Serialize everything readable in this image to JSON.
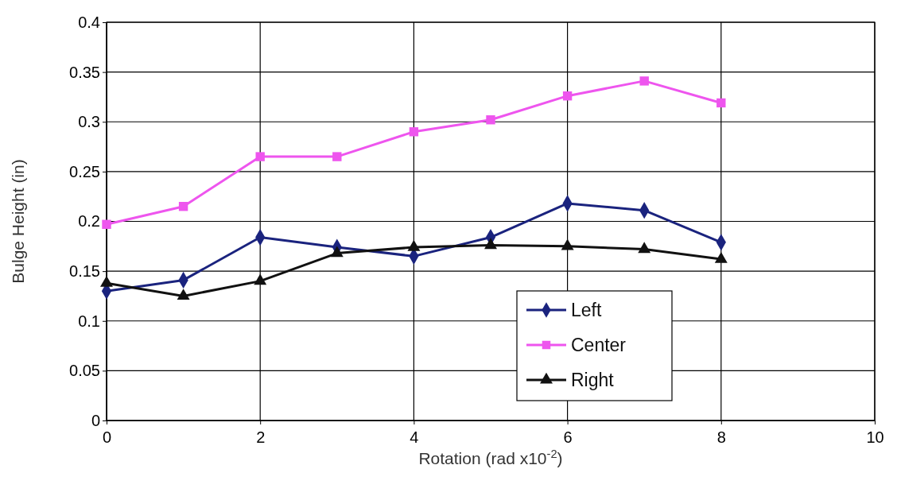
{
  "chart_data": {
    "type": "line",
    "xlabel": "Rotation (rad x10$^{-2}$)",
    "ylabel": "Bulge Height (in)",
    "x": [
      0,
      1,
      2,
      3,
      4,
      5,
      6,
      7,
      8
    ],
    "series": [
      {
        "name": "Left",
        "color": "#1a237e",
        "marker": "diamond",
        "values": [
          0.13,
          0.141,
          0.184,
          0.174,
          0.165,
          0.184,
          0.218,
          0.211,
          0.179
        ]
      },
      {
        "name": "Center",
        "color": "#ee55ee",
        "marker": "square",
        "values": [
          0.197,
          0.215,
          0.265,
          0.265,
          0.29,
          0.302,
          0.326,
          0.341,
          0.319
        ]
      },
      {
        "name": "Right",
        "color": "#111111",
        "marker": "triangle",
        "values": [
          0.138,
          0.125,
          0.14,
          0.168,
          0.174,
          0.176,
          0.175,
          0.172,
          0.162
        ]
      }
    ],
    "xlim": [
      0,
      10
    ],
    "xticks": [
      0,
      2,
      4,
      6,
      8,
      10
    ],
    "ylim": [
      0,
      0.4
    ],
    "yticks": [
      0,
      0.05,
      0.1,
      0.15,
      0.2,
      0.25,
      0.3,
      0.35,
      0.4
    ],
    "grid": true,
    "legend": "bottom"
  }
}
